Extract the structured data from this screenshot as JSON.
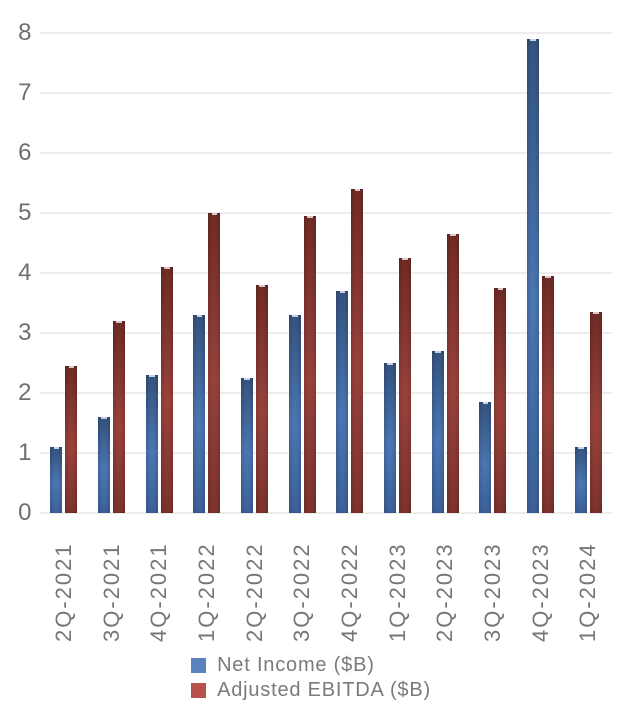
{
  "chart_data": {
    "type": "bar",
    "title": "",
    "categories": [
      "2Q-2021",
      "3Q-2021",
      "4Q-2021",
      "1Q-2022",
      "2Q-2022",
      "3Q-2022",
      "4Q-2022",
      "1Q-2023",
      "2Q-2023",
      "3Q-2023",
      "4Q-2023",
      "1Q-2024"
    ],
    "series": [
      {
        "name": "Net Income ($B)",
        "values": [
          1.1,
          1.6,
          2.3,
          3.3,
          2.25,
          3.3,
          3.7,
          2.5,
          2.7,
          1.85,
          7.9,
          1.1
        ],
        "bar_color_top": "#35537f",
        "bar_color_mid": "#4c77b2",
        "bar_color_bottom": "#3d619b",
        "legend_color": "#5a82bd"
      },
      {
        "name": "Adjusted EBITDA ($B)",
        "values": [
          2.45,
          3.2,
          4.1,
          5.0,
          3.8,
          4.95,
          5.4,
          4.25,
          4.65,
          3.75,
          3.95,
          3.35
        ],
        "bar_color_top": "#702b26",
        "bar_color_mid": "#9a423c",
        "bar_color_bottom": "#7e332e",
        "legend_color": "#b9524d"
      }
    ],
    "xlabel": "",
    "ylabel": "",
    "ylim": [
      0,
      8
    ],
    "yticks": [
      0,
      1,
      2,
      3,
      4,
      5,
      6,
      7,
      8
    ],
    "grid": true,
    "legend_position": "bottom"
  },
  "colors": {
    "background": "#ffffff",
    "gridline": "#ececec",
    "axis_text": "#6f6f6f",
    "x_axis_text": "#767676",
    "legend_text": "#7a7a7a"
  }
}
